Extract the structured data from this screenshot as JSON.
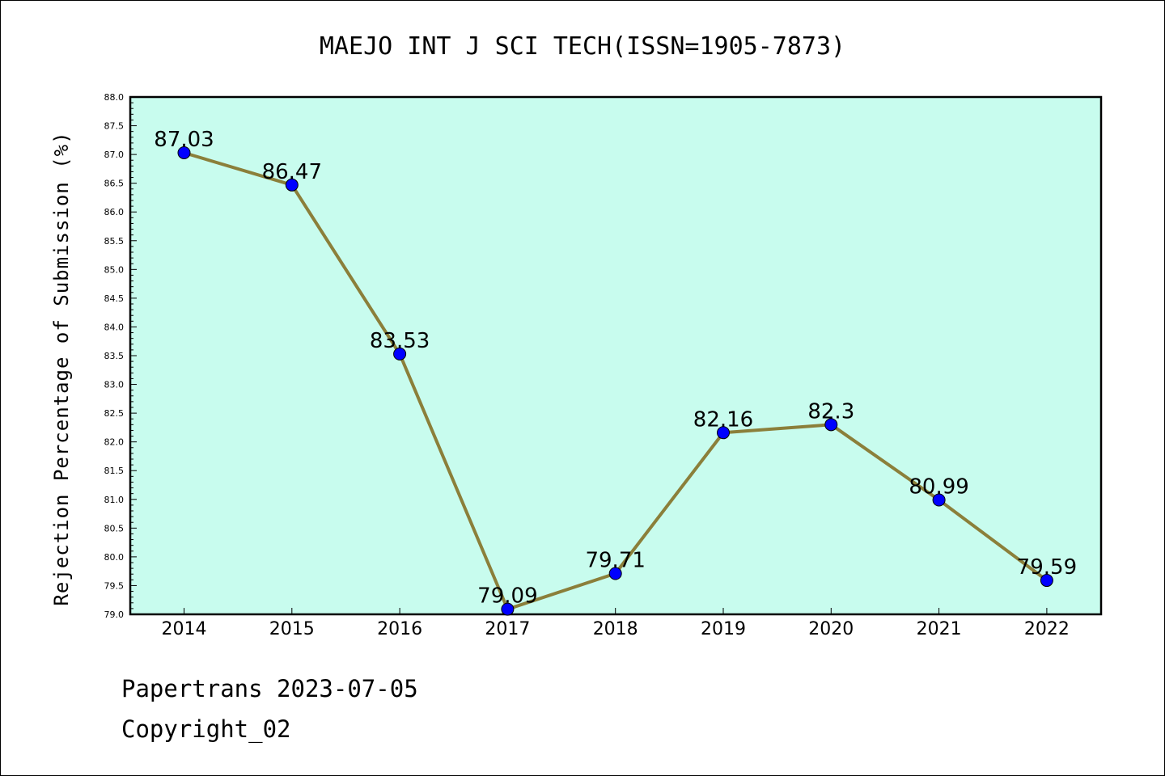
{
  "chart_data": {
    "type": "line",
    "title": "MAEJO INT J SCI TECH(ISSN=1905-7873)",
    "xlabel": "",
    "ylabel": "Rejection Percentage of Submission (%)",
    "categories": [
      "2014",
      "2015",
      "2016",
      "2017",
      "2018",
      "2019",
      "2020",
      "2021",
      "2022"
    ],
    "series": [
      {
        "values": [
          87.03,
          86.47,
          83.53,
          79.09,
          79.71,
          82.16,
          82.3,
          80.99,
          79.59
        ],
        "labels": [
          "87.03",
          "86.47",
          "83.53",
          "79.09",
          "79.71",
          "82.16",
          "82.3",
          "80.99",
          "79.59"
        ]
      }
    ],
    "ylim": [
      79.0,
      88.0
    ],
    "yticks": [
      "79.0",
      "79.5",
      "80.0",
      "80.5",
      "81.0",
      "81.5",
      "82.0",
      "82.5",
      "83.0",
      "83.5",
      "84.0",
      "84.5",
      "85.0",
      "85.5",
      "86.0",
      "86.5",
      "87.0",
      "87.5",
      "88.0"
    ],
    "grid": false,
    "colors": {
      "plot_background": "#c8fcee",
      "line": "#8b7f3a",
      "marker": "#0000ff"
    }
  },
  "footer": {
    "line1": "Papertrans 2023-07-05",
    "line2": "Copyright_02"
  }
}
